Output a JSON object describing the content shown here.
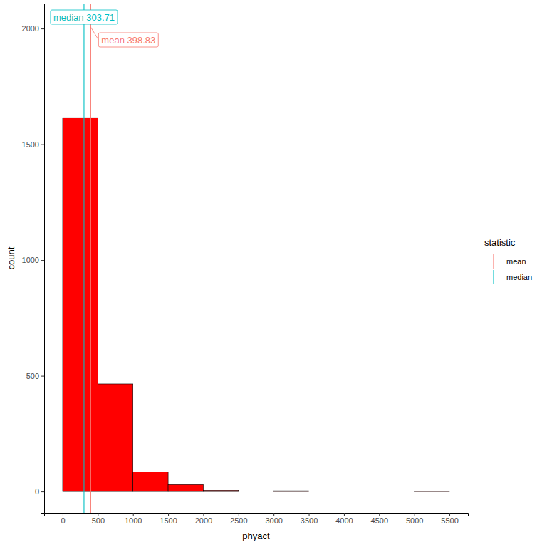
{
  "chart_data": {
    "type": "histogram",
    "x_label": "phyact",
    "y_label": "count",
    "bins": [
      0,
      500,
      1000,
      1500,
      2000,
      2500,
      3000,
      3500,
      4000,
      4500,
      5000,
      5500
    ],
    "values": [
      1615,
      465,
      85,
      30,
      5,
      0,
      3,
      0,
      0,
      0,
      1
    ],
    "color": "#ff0000",
    "xlim": [
      -263,
      5763
    ],
    "xticks": [
      0,
      500,
      1000,
      1500,
      2000,
      2500,
      3000,
      3500,
      4000,
      4500,
      5000,
      5500
    ],
    "ylim": [
      -92,
      2108
    ],
    "yticks": [
      0,
      500,
      1000,
      1500,
      2000
    ],
    "legend": "right",
    "legend_title": "statistic",
    "annotations": [
      {
        "name": "mean",
        "value": 398.83,
        "color": "#f8766d",
        "label": "mean 398.83"
      },
      {
        "name": "median",
        "value": 303.71,
        "color": "#00bfc4",
        "label": "median 303.71"
      }
    ]
  }
}
